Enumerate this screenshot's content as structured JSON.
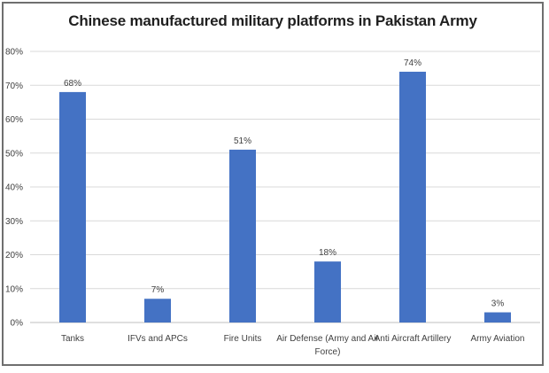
{
  "chart_data": {
    "type": "bar",
    "title": "Chinese manufactured military platforms in Pakistan Army",
    "categories": [
      "Tanks",
      "IFVs and APCs",
      "Fire Units",
      "Air Defense (Army and Air Force)",
      "Anti Aircraft Artillery",
      "Army Aviation"
    ],
    "category_lines": [
      [
        "Tanks"
      ],
      [
        "IFVs and APCs"
      ],
      [
        "Fire Units"
      ],
      [
        "Air Defense (Army and Air",
        "Force)"
      ],
      [
        "Anti Aircraft Artillery"
      ],
      [
        "Army Aviation"
      ]
    ],
    "values": [
      68,
      7,
      51,
      18,
      74,
      3
    ],
    "data_labels": [
      "68%",
      "7%",
      "51%",
      "18%",
      "74%",
      "3%"
    ],
    "ylim": [
      0,
      80
    ],
    "yticks": [
      0,
      10,
      20,
      30,
      40,
      50,
      60,
      70,
      80
    ],
    "ytick_labels": [
      "0%",
      "10%",
      "20%",
      "30%",
      "40%",
      "50%",
      "60%",
      "70%",
      "80%"
    ],
    "xlabel": "",
    "ylabel": "",
    "grid": true,
    "bar_color": "#4472c4",
    "grid_color": "#d9d9d9"
  }
}
